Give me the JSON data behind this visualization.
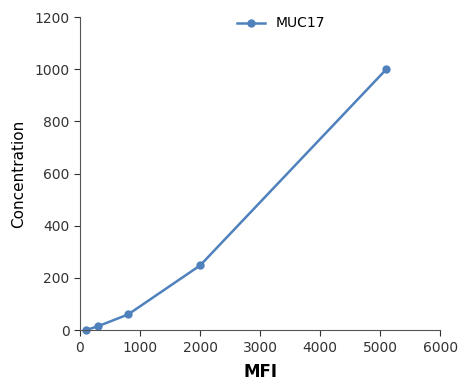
{
  "x": [
    100,
    300,
    800,
    2000,
    5100
  ],
  "y": [
    0,
    15,
    60,
    248,
    1000
  ],
  "line_color": "#4f81bd",
  "marker": "o",
  "marker_size": 5,
  "label": "MUC17",
  "xlabel": "MFI",
  "ylabel": "Concentration",
  "xlim": [
    0,
    6000
  ],
  "ylim": [
    0,
    1200
  ],
  "xticks": [
    0,
    1000,
    2000,
    3000,
    4000,
    5000,
    6000
  ],
  "yticks": [
    0,
    200,
    400,
    600,
    800,
    1000,
    1200
  ],
  "xlabel_fontsize": 12,
  "ylabel_fontsize": 11,
  "tick_fontsize": 10,
  "legend_fontsize": 10,
  "background_color": "#ffffff",
  "linewidth": 1.8,
  "spine_color": "#555555"
}
